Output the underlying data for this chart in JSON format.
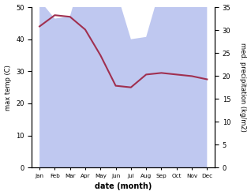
{
  "months": [
    "Jan",
    "Feb",
    "Mar",
    "Apr",
    "May",
    "Jun",
    "Jul",
    "Aug",
    "Sep",
    "Oct",
    "Nov",
    "Dec"
  ],
  "precipitation_mm": [
    36.5,
    32.5,
    33.0,
    44.5,
    46.0,
    39.0,
    28.0,
    28.5,
    40.0,
    43.0,
    44.0,
    46.0
  ],
  "temp_line": [
    44.0,
    47.5,
    47.0,
    43.0,
    35.0,
    25.5,
    25.0,
    29.0,
    29.5,
    29.0,
    28.5,
    27.5
  ],
  "xlabel": "date (month)",
  "ylabel_left": "max temp (C)",
  "ylabel_right": "med. precipitation (kg/m2)",
  "ylim_left": [
    0,
    50
  ],
  "ylim_right": [
    0,
    35
  ],
  "precip_fill_color": "#bfc8f0",
  "temp_color": "#a03050",
  "tick_fontsize": 6,
  "label_fontsize": 6,
  "xlabel_fontsize": 7
}
